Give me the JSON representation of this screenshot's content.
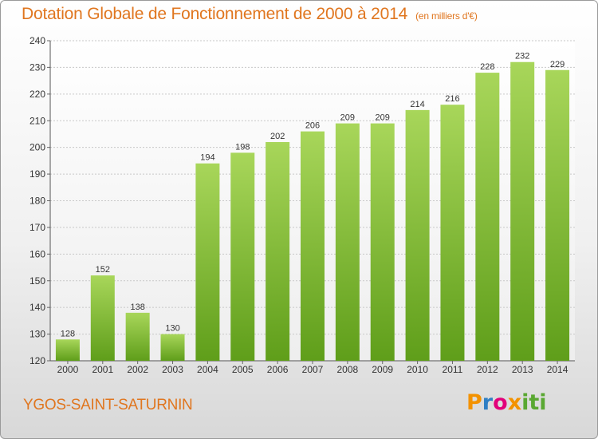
{
  "header": {
    "title": "Dotation Globale de Fonctionnement de 2000 à 2014",
    "unit": "(en milliers d'€)"
  },
  "commune": "YGOS-SAINT-SATURNIN",
  "logo": {
    "text": "Proxiti"
  },
  "colors": {
    "bar_top": "#a8d65a",
    "bar_bottom": "#5f9e1a",
    "title": "#e0761f",
    "grid": "#c8c8c8"
  },
  "chart_data": {
    "type": "bar",
    "title": "Dotation Globale de Fonctionnement de 2000 à 2014",
    "subtitle": "(en milliers d'€)",
    "xlabel": "",
    "ylabel": "",
    "categories": [
      "2000",
      "2001",
      "2002",
      "2003",
      "2004",
      "2005",
      "2006",
      "2007",
      "2008",
      "2009",
      "2010",
      "2011",
      "2012",
      "2013",
      "2014"
    ],
    "values": [
      128,
      152,
      138,
      130,
      194,
      198,
      202,
      206,
      209,
      209,
      214,
      216,
      228,
      232,
      229
    ],
    "ylim": [
      120,
      240
    ],
    "yticks": [
      120,
      130,
      140,
      150,
      160,
      170,
      180,
      190,
      200,
      210,
      220,
      230,
      240
    ],
    "grid": true,
    "data_labels": true,
    "legend": "none"
  }
}
